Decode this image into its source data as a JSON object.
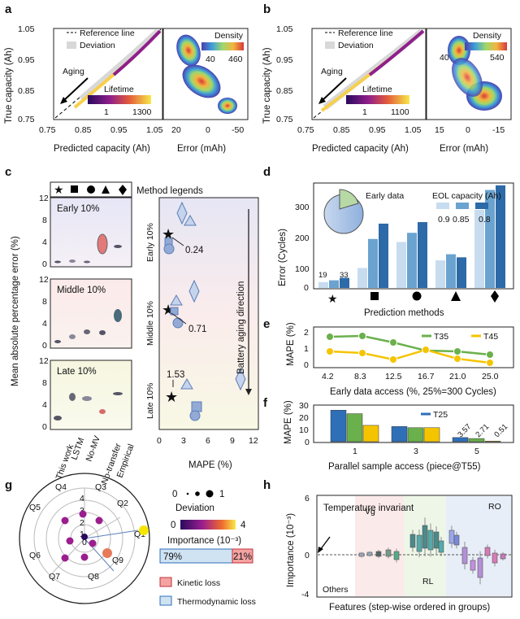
{
  "panels": {
    "a": {
      "label": "a",
      "scatter": {
        "legend_ref": "Reference line",
        "legend_dev": "Deviation",
        "arrow_label": "Aging",
        "cbar_title": "Lifetime",
        "cbar_min": "1",
        "cbar_max": "1300",
        "ylabel": "True capacity (Ah)",
        "xlabel": "Predicted capacity (Ah)",
        "xticks": [
          "0.75",
          "0.85",
          "0.95",
          "1.05"
        ],
        "yticks": [
          "1.05",
          "0.95",
          "0.85",
          "0.75"
        ]
      },
      "density": {
        "title": "Density",
        "cbar_min": "40",
        "cbar_max": "460",
        "xlabel": "Error (mAh)",
        "xticks": [
          "20",
          "0",
          "-50"
        ]
      }
    },
    "b": {
      "label": "b",
      "scatter": {
        "legend_ref": "Reference line",
        "legend_dev": "Deviation",
        "arrow_label": "Aging",
        "cbar_title": "Lifetime",
        "cbar_min": "1",
        "cbar_max": "1100",
        "ylabel": "True capacity (Ah)",
        "xlabel": "Predicted capacity (Ah)",
        "xticks": [
          "0.75",
          "0.85",
          "0.95",
          "1.05"
        ],
        "yticks": [
          "1.05",
          "0.95",
          "0.85",
          "0.75"
        ]
      },
      "density": {
        "title": "Density",
        "cbar_min": "40",
        "cbar_max": "540",
        "xlabel": "Error (mAh)",
        "xticks": [
          "15",
          "0",
          "-15"
        ]
      }
    },
    "c": {
      "label": "c",
      "method_legends": "Method legends",
      "ylabel": "Mean absolute percentage error (%)",
      "boxes": [
        {
          "title": "Early 10%"
        },
        {
          "title": "Middle 10%"
        },
        {
          "title": "Late 10%"
        }
      ],
      "yticks": [
        "12",
        "8",
        "4",
        "0"
      ],
      "methods": [
        "This work",
        "LSTM",
        "No-MV",
        "No-transfer",
        "Empirical"
      ],
      "right": {
        "xlabel": "MAPE (%)",
        "xticks": [
          "0",
          "3",
          "6",
          "9",
          "12"
        ],
        "ylabels": [
          "Early 10%",
          "Middle 10%",
          "Late 10%"
        ],
        "arrow_label": "Battery aging direction",
        "annotations": [
          "0.24",
          "0.71",
          "1.53"
        ]
      }
    },
    "d": {
      "label": "d",
      "ylabel": "Error (Cycles)",
      "xlabel": "Prediction methods",
      "yticks": [
        "300",
        "200",
        "100",
        "0"
      ],
      "pie_label": "Early data",
      "eol_title": "EOL capacity (Ah)",
      "eol_levels": [
        "0.9",
        "0.85",
        "0.8"
      ],
      "bar_labels": [
        "19",
        "33"
      ]
    },
    "e": {
      "label": "e",
      "ylabel": "MAPE (%)",
      "xlabel": "Early data access (%, 25%=300 Cycles)",
      "yticks": [
        "2",
        "1",
        "0"
      ],
      "xticks": [
        "4.2",
        "8.3",
        "12.5",
        "16.7",
        "21.0",
        "25.0"
      ],
      "series": [
        "T35",
        "T45"
      ]
    },
    "f": {
      "label": "f",
      "ylabel": "MAPE (%)",
      "xlabel": "Parallel sample access (piece@T55)",
      "yticks": [
        "30",
        "20",
        "10",
        "0"
      ],
      "xticks": [
        "1",
        "3",
        "5"
      ],
      "legend": "T25",
      "bar_labels": [
        "3.57",
        "2.71",
        "0.51"
      ]
    },
    "g": {
      "label": "g",
      "quadrants": [
        "Q1",
        "Q2",
        "Q3",
        "Q4",
        "Q5",
        "Q6",
        "Q7",
        "Q8",
        "Q9"
      ],
      "rings": [
        "4",
        "3",
        "2",
        "1",
        "0"
      ],
      "dev_title": "Deviation",
      "dev_min": "0",
      "dev_max": "1",
      "imp_title": "Importance (10⁻³)",
      "imp_min": "0",
      "imp_max": "4",
      "bar_left": "79%",
      "bar_right": "21%",
      "legend_kinetic": "Kinetic loss",
      "legend_thermo": "Thermodynamic loss"
    },
    "h": {
      "label": "h",
      "ylabel": "Importance (10⁻³)",
      "xlabel": "Features (step-wise ordered in groups)",
      "yticks": [
        "6",
        "0",
        "-4"
      ],
      "groups": [
        "Vg",
        "RO",
        "RL",
        "Others"
      ],
      "annotation": "Temperature invariant"
    }
  },
  "colors": {
    "gold": "#f5c400",
    "green": "#6ab04c",
    "blue": "#2f6fb8",
    "kinetic": "#f4a3a3",
    "thermo": "#cfe3f3"
  },
  "chart_data": [
    {
      "type": "line",
      "panel": "e",
      "x": [
        4.2,
        8.3,
        12.5,
        16.7,
        21.0,
        25.0
      ],
      "series": [
        {
          "name": "T35",
          "values": [
            1.75,
            1.8,
            1.4,
            0.9,
            0.85,
            0.65
          ]
        },
        {
          "name": "T45",
          "values": [
            0.85,
            0.75,
            0.35,
            0.95,
            0.4,
            0.15
          ]
        }
      ],
      "ylim": [
        0,
        2.2
      ]
    },
    {
      "type": "bar",
      "panel": "d",
      "categories": [
        "★",
        "■",
        "●",
        "▲",
        "⧫"
      ],
      "series": [
        {
          "name": "0.9",
          "values": [
            19,
            65,
            150,
            90,
            255
          ]
        },
        {
          "name": "0.85",
          "values": [
            25,
            160,
            180,
            110,
            320
          ]
        },
        {
          "name": "0.8",
          "values": [
            33,
            210,
            215,
            100,
            335
          ]
        }
      ],
      "ylim": [
        0,
        340
      ]
    },
    {
      "type": "bar",
      "panel": "f",
      "categories": [
        "1",
        "3",
        "5"
      ],
      "series": [
        {
          "name": "T25",
          "values": [
            27,
            13,
            3.57
          ]
        },
        {
          "name": "",
          "values": [
            24,
            12,
            2.71
          ]
        },
        {
          "name": "",
          "values": [
            14,
            12,
            0.51
          ]
        }
      ],
      "ylim": [
        0,
        30
      ]
    }
  ]
}
